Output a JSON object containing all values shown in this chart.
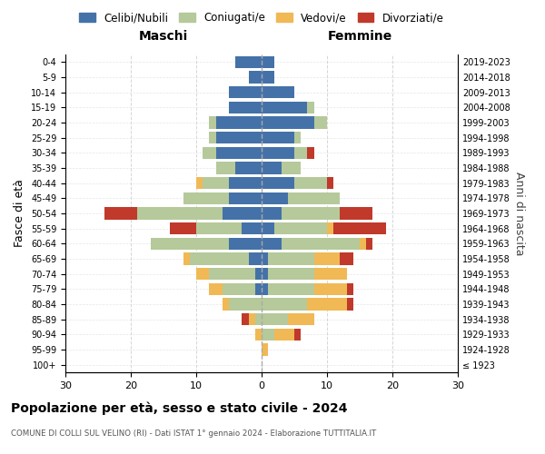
{
  "age_groups": [
    "100+",
    "95-99",
    "90-94",
    "85-89",
    "80-84",
    "75-79",
    "70-74",
    "65-69",
    "60-64",
    "55-59",
    "50-54",
    "45-49",
    "40-44",
    "35-39",
    "30-34",
    "25-29",
    "20-24",
    "15-19",
    "10-14",
    "5-9",
    "0-4"
  ],
  "birth_years": [
    "≤ 1923",
    "1924-1928",
    "1929-1933",
    "1934-1938",
    "1939-1943",
    "1944-1948",
    "1949-1953",
    "1954-1958",
    "1959-1963",
    "1964-1968",
    "1969-1973",
    "1974-1978",
    "1979-1983",
    "1984-1988",
    "1989-1993",
    "1994-1998",
    "1999-2003",
    "2004-2008",
    "2009-2013",
    "2014-2018",
    "2019-2023"
  ],
  "colors": {
    "celibi": "#4472a8",
    "coniugati": "#b5c99a",
    "vedovi": "#f0b955",
    "divorziati": "#c0392b"
  },
  "maschi": {
    "celibi": [
      0,
      0,
      0,
      0,
      0,
      1,
      1,
      2,
      5,
      3,
      6,
      5,
      5,
      4,
      7,
      7,
      7,
      5,
      5,
      2,
      4
    ],
    "coniugati": [
      0,
      0,
      0,
      1,
      5,
      5,
      7,
      9,
      12,
      7,
      13,
      7,
      4,
      3,
      2,
      1,
      1,
      0,
      0,
      0,
      0
    ],
    "vedovi": [
      0,
      0,
      1,
      1,
      1,
      2,
      2,
      1,
      0,
      0,
      0,
      0,
      1,
      0,
      0,
      0,
      0,
      0,
      0,
      0,
      0
    ],
    "divorziati": [
      0,
      0,
      0,
      1,
      0,
      0,
      0,
      0,
      0,
      4,
      5,
      0,
      0,
      0,
      0,
      0,
      0,
      0,
      0,
      0,
      0
    ]
  },
  "femmine": {
    "celibi": [
      0,
      0,
      0,
      0,
      0,
      1,
      1,
      1,
      3,
      2,
      3,
      4,
      5,
      3,
      5,
      5,
      8,
      7,
      5,
      2,
      2
    ],
    "coniugati": [
      0,
      0,
      2,
      4,
      7,
      7,
      7,
      7,
      12,
      8,
      9,
      8,
      5,
      3,
      2,
      1,
      2,
      1,
      0,
      0,
      0
    ],
    "vedovi": [
      0,
      1,
      3,
      4,
      6,
      5,
      5,
      4,
      1,
      1,
      0,
      0,
      0,
      0,
      0,
      0,
      0,
      0,
      0,
      0,
      0
    ],
    "divorziati": [
      0,
      0,
      1,
      0,
      1,
      1,
      0,
      2,
      1,
      8,
      5,
      0,
      1,
      0,
      1,
      0,
      0,
      0,
      0,
      0,
      0
    ]
  },
  "xlim": 30,
  "title": "Popolazione per età, sesso e stato civile - 2024",
  "subtitle": "COMUNE DI COLLI SUL VELINO (RI) - Dati ISTAT 1° gennaio 2024 - Elaborazione TUTTITALIA.IT",
  "xlabel_left": "Maschi",
  "xlabel_right": "Femmine",
  "ylabel_left": "Fasce di età",
  "ylabel_right": "Anni di nascita",
  "legend_labels": [
    "Celibi/Nubili",
    "Coniugati/e",
    "Vedovi/e",
    "Divorziati/e"
  ],
  "background_color": "#ffffff",
  "grid_color": "#cccccc"
}
